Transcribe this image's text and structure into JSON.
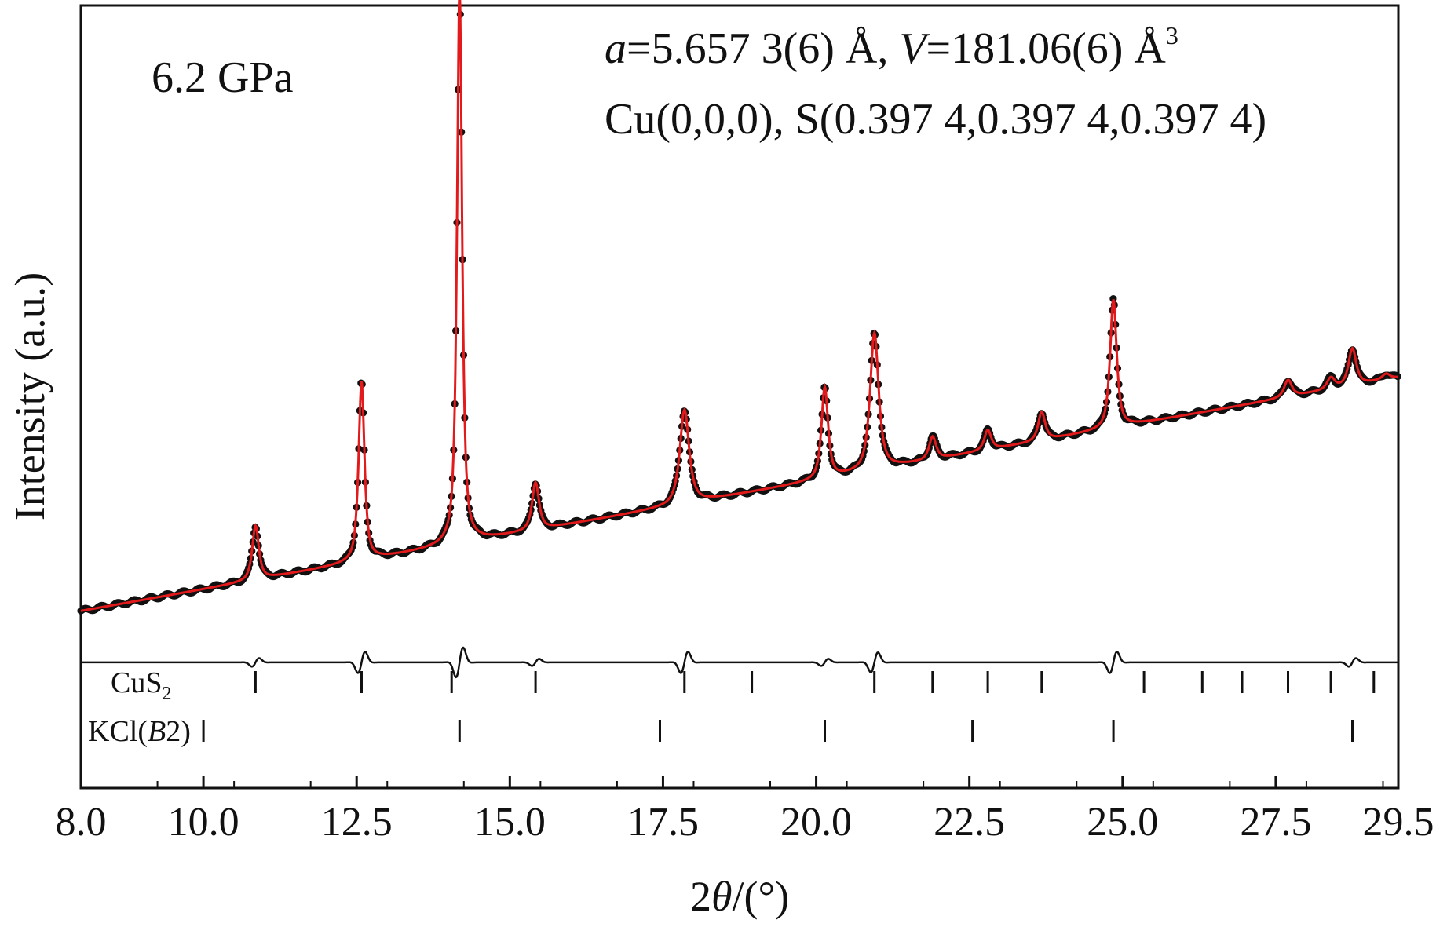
{
  "chart_data": {
    "type": "scatter",
    "title": "",
    "xlabel_prefix": "2",
    "xlabel_symbol": "θ",
    "xlabel_suffix": "/(°)",
    "ylabel": "Intensity (a.u.)",
    "xlim": [
      8.0,
      29.5
    ],
    "ylim": [
      -0.31,
      1.06
    ],
    "x_ticks": [
      "8.0",
      "10.0",
      "12.5",
      "15.0",
      "17.5",
      "20.0",
      "22.5",
      "25.0",
      "27.5",
      "29.5"
    ],
    "x_tick_values": [
      8.0,
      10.0,
      12.5,
      15.0,
      17.5,
      20.0,
      22.5,
      25.0,
      27.5,
      29.5
    ],
    "y_ticks": [],
    "annotations": {
      "pressure": "6.2 GPa",
      "lattice_a_symbol": "a",
      "lattice_a_value": "=5.657 3(6) Å, ",
      "volume_symbol": "V",
      "volume_value": "=181.06(6) Å",
      "volume_unit_sup": "3",
      "atoms": "Cu(0,0,0), S(0.397 4,0.397 4,0.397 4)"
    },
    "background": {
      "start": 0.0,
      "slope": 0.019,
      "end_extra": 0.0
    },
    "peaks": [
      {
        "center": 10.85,
        "height": 0.095,
        "width": 0.085
      },
      {
        "center": 12.58,
        "height": 0.315,
        "width": 0.075
      },
      {
        "center": 14.18,
        "height": 0.975,
        "width": 0.065
      },
      {
        "center": 15.42,
        "height": 0.083,
        "width": 0.09
      },
      {
        "center": 17.85,
        "height": 0.165,
        "width": 0.12
      },
      {
        "center": 20.14,
        "height": 0.16,
        "width": 0.085
      },
      {
        "center": 20.95,
        "height": 0.24,
        "width": 0.11
      },
      {
        "center": 21.9,
        "height": 0.04,
        "width": 0.09
      },
      {
        "center": 22.8,
        "height": 0.035,
        "width": 0.09
      },
      {
        "center": 23.68,
        "height": 0.05,
        "width": 0.09
      },
      {
        "center": 24.85,
        "height": 0.225,
        "width": 0.085
      },
      {
        "center": 27.7,
        "height": 0.03,
        "width": 0.1
      },
      {
        "center": 28.4,
        "height": 0.02,
        "width": 0.1
      },
      {
        "center": 28.75,
        "height": 0.065,
        "width": 0.1
      },
      {
        "center": 29.3,
        "height": 0.01,
        "width": 0.1
      }
    ],
    "series": [
      {
        "name": "",
        "role": "observed",
        "marker": "dot",
        "color": "#111111"
      },
      {
        "name": "",
        "role": "calculated",
        "marker": "line",
        "color": "#e31a1c"
      },
      {
        "name": "",
        "role": "difference",
        "marker": "line",
        "color": "#111111",
        "offset": -0.09
      }
    ],
    "difference_features": [
      {
        "center": 10.85,
        "amp": 0.012
      },
      {
        "center": 12.58,
        "amp": 0.03
      },
      {
        "center": 14.18,
        "amp": 0.042
      },
      {
        "center": 15.42,
        "amp": 0.01
      },
      {
        "center": 17.85,
        "amp": 0.03
      },
      {
        "center": 20.14,
        "amp": 0.01
      },
      {
        "center": 20.95,
        "amp": 0.028
      },
      {
        "center": 24.85,
        "amp": 0.03
      },
      {
        "center": 28.75,
        "amp": 0.012
      }
    ],
    "reflection_markers": [
      {
        "label_main": "CuS",
        "label_sub": "2",
        "label_italic": "",
        "label_end": "",
        "positions": [
          10.85,
          12.58,
          14.05,
          15.42,
          17.85,
          18.95,
          20.95,
          21.9,
          22.8,
          23.68,
          25.35,
          26.3,
          26.95,
          27.7,
          28.4,
          29.1
        ]
      },
      {
        "label_main": "KCl(",
        "label_sub": "",
        "label_italic": "B",
        "label_end": "2)",
        "positions": [
          10.0,
          14.18,
          17.45,
          20.14,
          22.55,
          24.85,
          28.75
        ]
      }
    ],
    "grid": false,
    "legend": "none"
  }
}
